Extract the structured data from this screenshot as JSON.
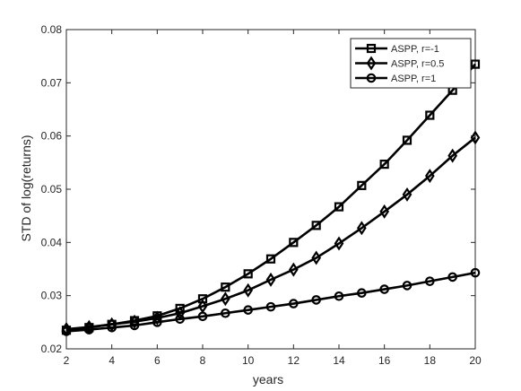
{
  "chart_data": {
    "type": "line",
    "xlabel": "years",
    "ylabel": "STD of log(returns)",
    "xlim": [
      2,
      20
    ],
    "ylim": [
      0.02,
      0.08
    ],
    "xticks": [
      2,
      4,
      6,
      8,
      10,
      12,
      14,
      16,
      18,
      20
    ],
    "xtick_labels": [
      "2",
      "4",
      "6",
      "8",
      "10",
      "12",
      "14",
      "16",
      "18",
      "20"
    ],
    "yticks": [
      0.02,
      0.03,
      0.04,
      0.05,
      0.06,
      0.07,
      0.08
    ],
    "ytick_labels": [
      "0.02",
      "0.03",
      "0.04",
      "0.05",
      "0.06",
      "0.07",
      "0.08"
    ],
    "grid": false,
    "legend_position": "top-right",
    "x": [
      2,
      3,
      4,
      5,
      6,
      7,
      8,
      9,
      10,
      11,
      12,
      13,
      14,
      15,
      16,
      17,
      18,
      19,
      20
    ],
    "series": [
      {
        "name": "ASPP, r=-1",
        "marker": "square",
        "color": "#000000",
        "values": [
          0.0235,
          0.024,
          0.0246,
          0.0253,
          0.0262,
          0.0276,
          0.0294,
          0.0316,
          0.0341,
          0.0369,
          0.04,
          0.0432,
          0.0467,
          0.0507,
          0.0547,
          0.0592,
          0.0639,
          0.0686,
          0.0735
        ]
      },
      {
        "name": "ASPP, r=0.5",
        "marker": "diamond",
        "color": "#000000",
        "values": [
          0.0237,
          0.0241,
          0.0246,
          0.0251,
          0.0258,
          0.0267,
          0.028,
          0.0294,
          0.031,
          0.033,
          0.0349,
          0.0371,
          0.0398,
          0.0427,
          0.0458,
          0.049,
          0.0525,
          0.0563,
          0.0597
        ]
      },
      {
        "name": "ASPP, r=1",
        "marker": "circle",
        "color": "#000000",
        "values": [
          0.0233,
          0.0236,
          0.024,
          0.0244,
          0.025,
          0.0256,
          0.0261,
          0.0267,
          0.0273,
          0.0279,
          0.0285,
          0.0292,
          0.0299,
          0.0305,
          0.0312,
          0.0319,
          0.0327,
          0.0335,
          0.0343
        ]
      }
    ]
  }
}
